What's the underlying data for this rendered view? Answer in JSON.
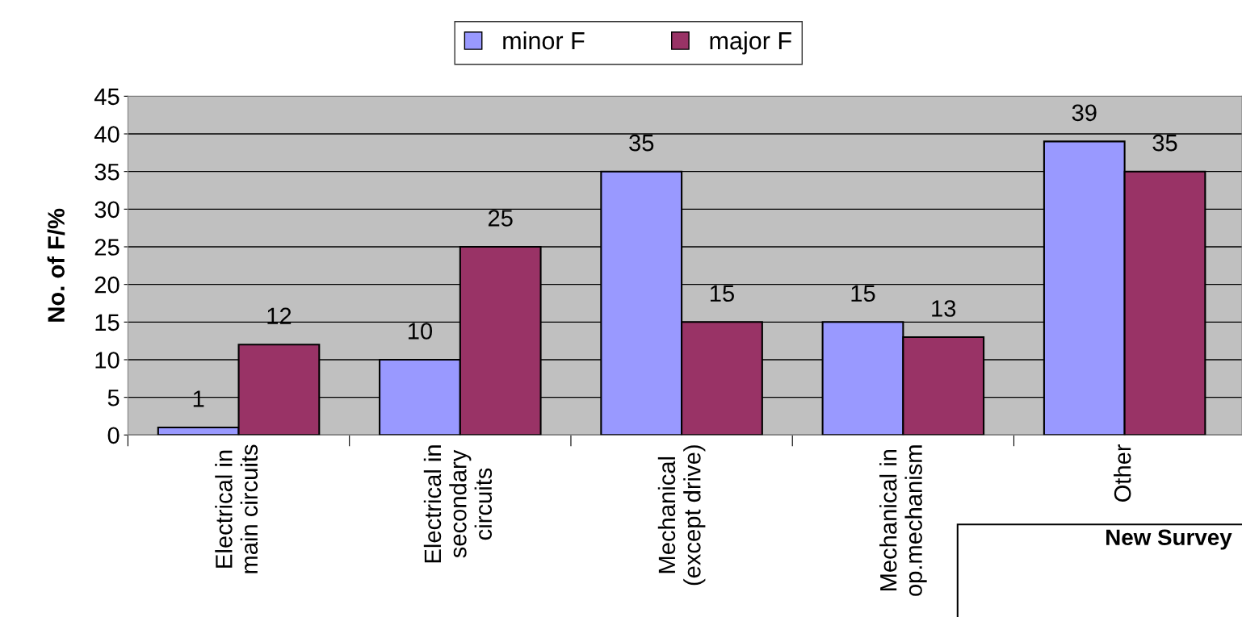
{
  "chart_data": {
    "type": "bar",
    "ylabel": "No. of F/%",
    "categories": [
      "Electrical in\nmain circuits",
      "Electrical in\nsecondary\ncircuits",
      "Mechanical\n(except drive)",
      "Mechanical in\nop.mechanism",
      "Other"
    ],
    "series": [
      {
        "name": "minor F",
        "color": "#9999ff",
        "values": [
          1,
          10,
          35,
          15,
          39
        ]
      },
      {
        "name": "major F",
        "color": "#993366",
        "values": [
          12,
          25,
          15,
          13,
          35
        ]
      }
    ],
    "ylim": [
      0,
      45
    ],
    "yticks": [
      0,
      5,
      10,
      15,
      20,
      25,
      30,
      35,
      40,
      45
    ],
    "grid": "y",
    "legend": "top",
    "data_labels": true,
    "annotations": [
      "New Survey"
    ]
  }
}
